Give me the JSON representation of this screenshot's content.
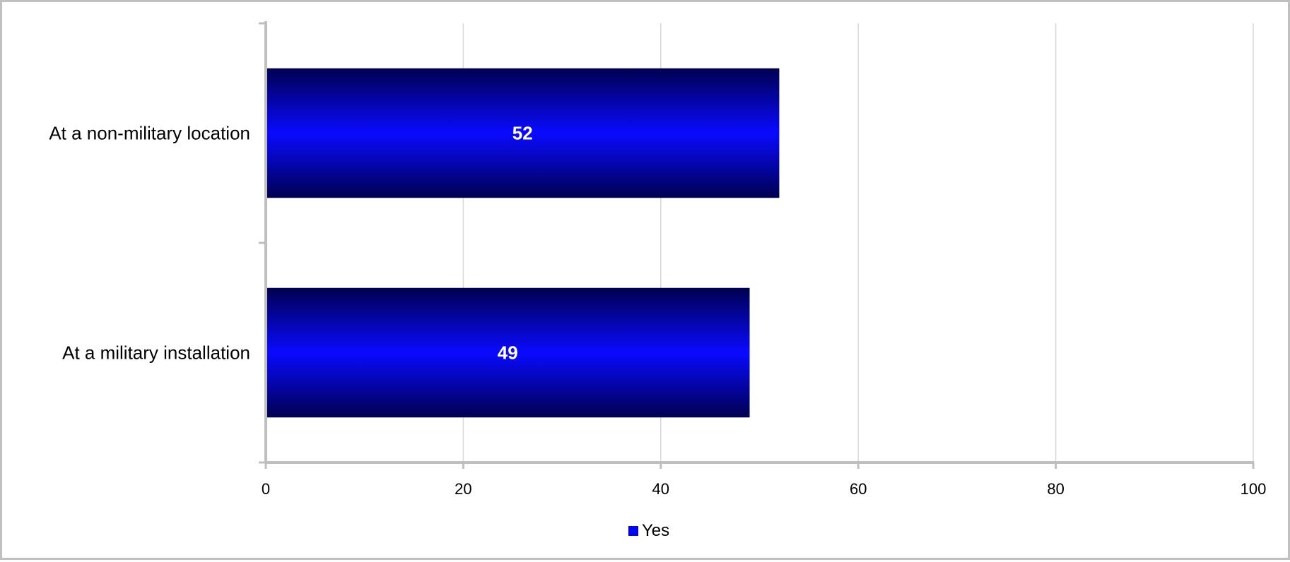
{
  "chart_data": {
    "type": "bar",
    "orientation": "horizontal",
    "title": "",
    "xlabel": "",
    "ylabel": "",
    "categories": [
      "At a non-military location",
      "At a military installation"
    ],
    "series": [
      {
        "name": "Yes",
        "values": [
          52,
          49
        ],
        "color": "#0000ff"
      }
    ],
    "xlim": [
      0,
      100
    ],
    "x_ticks": [
      "0",
      "20",
      "40",
      "60",
      "80",
      "100"
    ],
    "data_labels": [
      "52",
      "49"
    ],
    "grid": "vertical gridlines",
    "legend_position": "bottom"
  },
  "colors": {
    "bar_edge": "#000050",
    "bar_center": "#0a0aff",
    "grid": "#d9d9d9",
    "axis": "#bfbfbf",
    "frame": "#c0c0c0"
  }
}
